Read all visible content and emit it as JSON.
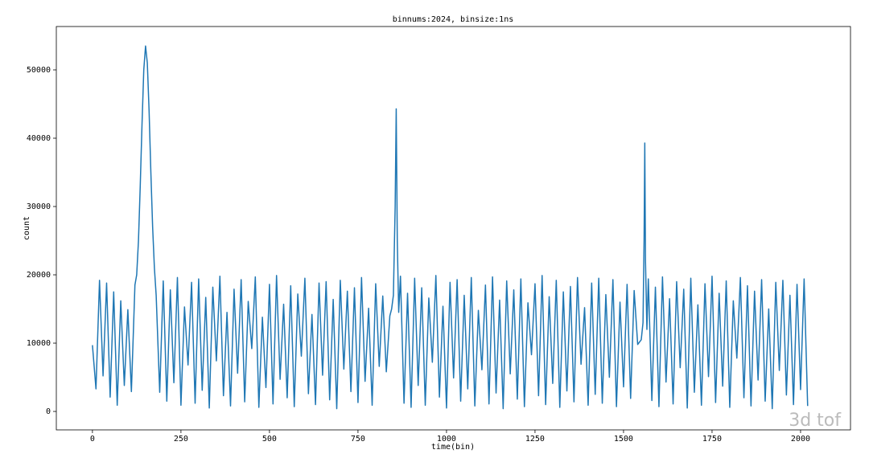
{
  "chart_data": {
    "type": "line",
    "title": "binnums:2024, binsize:1ns",
    "x_label": "time(bin)",
    "y_label": "count",
    "watermark": "3d tof",
    "x": [
      0,
      10,
      20,
      30,
      40,
      50,
      60,
      70,
      80,
      90,
      100,
      110,
      120,
      125,
      130,
      135,
      140,
      145,
      150,
      155,
      160,
      165,
      170,
      175,
      180,
      190,
      200,
      210,
      220,
      230,
      240,
      250,
      260,
      270,
      280,
      290,
      300,
      310,
      320,
      330,
      340,
      350,
      360,
      370,
      380,
      390,
      400,
      410,
      420,
      430,
      440,
      450,
      460,
      470,
      480,
      490,
      500,
      510,
      520,
      530,
      540,
      550,
      560,
      570,
      580,
      590,
      600,
      610,
      620,
      630,
      640,
      650,
      660,
      670,
      680,
      690,
      700,
      710,
      720,
      730,
      740,
      750,
      760,
      770,
      780,
      790,
      800,
      810,
      820,
      830,
      840,
      845,
      850,
      855,
      858,
      861,
      865,
      870,
      880,
      890,
      900,
      910,
      920,
      930,
      940,
      950,
      960,
      970,
      980,
      990,
      1000,
      1010,
      1020,
      1030,
      1040,
      1050,
      1060,
      1070,
      1080,
      1090,
      1100,
      1110,
      1120,
      1130,
      1140,
      1150,
      1160,
      1170,
      1180,
      1190,
      1200,
      1210,
      1220,
      1230,
      1240,
      1250,
      1260,
      1270,
      1280,
      1290,
      1300,
      1310,
      1320,
      1330,
      1340,
      1350,
      1360,
      1370,
      1380,
      1390,
      1400,
      1410,
      1420,
      1430,
      1440,
      1450,
      1460,
      1470,
      1480,
      1490,
      1500,
      1510,
      1520,
      1530,
      1540,
      1550,
      1555,
      1558,
      1560,
      1562,
      1566,
      1570,
      1580,
      1590,
      1600,
      1610,
      1620,
      1630,
      1640,
      1650,
      1660,
      1670,
      1680,
      1690,
      1700,
      1710,
      1720,
      1730,
      1740,
      1750,
      1760,
      1770,
      1780,
      1790,
      1800,
      1810,
      1820,
      1830,
      1840,
      1850,
      1860,
      1870,
      1880,
      1890,
      1900,
      1910,
      1920,
      1930,
      1940,
      1950,
      1960,
      1970,
      1980,
      1990,
      2000,
      2010,
      2020
    ],
    "series": [
      {
        "color": "#1f77b4",
        "values": [
          9700,
          3300,
          19200,
          5200,
          18800,
          2100,
          17500,
          900,
          16200,
          3800,
          14900,
          2900,
          18500,
          20000,
          25000,
          33000,
          42000,
          50000,
          53500,
          51000,
          44000,
          35000,
          27000,
          21000,
          17000,
          2800,
          19100,
          1500,
          17800,
          4200,
          19600,
          900,
          15300,
          6800,
          18900,
          1200,
          19400,
          3100,
          16700,
          500,
          18200,
          7400,
          19800,
          2300,
          14500,
          800,
          17900,
          5600,
          19300,
          1400,
          16100,
          9200,
          19700,
          600,
          13800,
          3500,
          18600,
          1100,
          19900,
          4700,
          15700,
          2000,
          18400,
          700,
          17200,
          8100,
          19500,
          2600,
          14200,
          1000,
          18800,
          5300,
          19000,
          1700,
          16400,
          400,
          19200,
          6200,
          17600,
          2900,
          18100,
          1300,
          19600,
          4400,
          15100,
          900,
          18700,
          6600,
          16900,
          5800,
          14000,
          15000,
          17000,
          30000,
          44300,
          25000,
          14500,
          19800,
          1200,
          17300,
          600,
          19500,
          3800,
          18100,
          900,
          16600,
          7200,
          19900,
          2100,
          15400,
          500,
          18900,
          4900,
          19300,
          1500,
          17000,
          3300,
          19600,
          800,
          14800,
          6100,
          18500,
          1100,
          19700,
          2700,
          16300,
          400,
          19100,
          5500,
          17800,
          1800,
          19400,
          700,
          15900,
          8300,
          18700,
          2300,
          19900,
          1000,
          16800,
          4100,
          19200,
          600,
          17500,
          3000,
          18300,
          1400,
          19600,
          6900,
          15200,
          900,
          18800,
          2500,
          19500,
          1200,
          17100,
          5000,
          19300,
          700,
          16000,
          3600,
          18600,
          1900,
          17700,
          9800,
          10500,
          13000,
          25000,
          39300,
          22000,
          12000,
          19400,
          1600,
          18200,
          700,
          19700,
          4300,
          16500,
          1100,
          19000,
          6400,
          17900,
          500,
          19500,
          2800,
          15600,
          900,
          18700,
          5100,
          19800,
          1300,
          17300,
          3700,
          19100,
          600,
          16200,
          7800,
          19600,
          2000,
          18400,
          800,
          17600,
          4600,
          19300,
          1500,
          15000,
          400,
          18900,
          6000,
          19200,
          2400,
          17000,
          1000,
          18600,
          3200,
          19400,
          800
        ]
      }
    ],
    "xlim": [
      -102,
      2141
    ],
    "ylim": [
      -2700,
      56350
    ],
    "xticks": [
      0,
      250,
      500,
      750,
      1000,
      1250,
      1500,
      1750,
      2000
    ],
    "yticks": [
      0,
      10000,
      20000,
      30000,
      40000,
      50000
    ],
    "grid": false
  }
}
